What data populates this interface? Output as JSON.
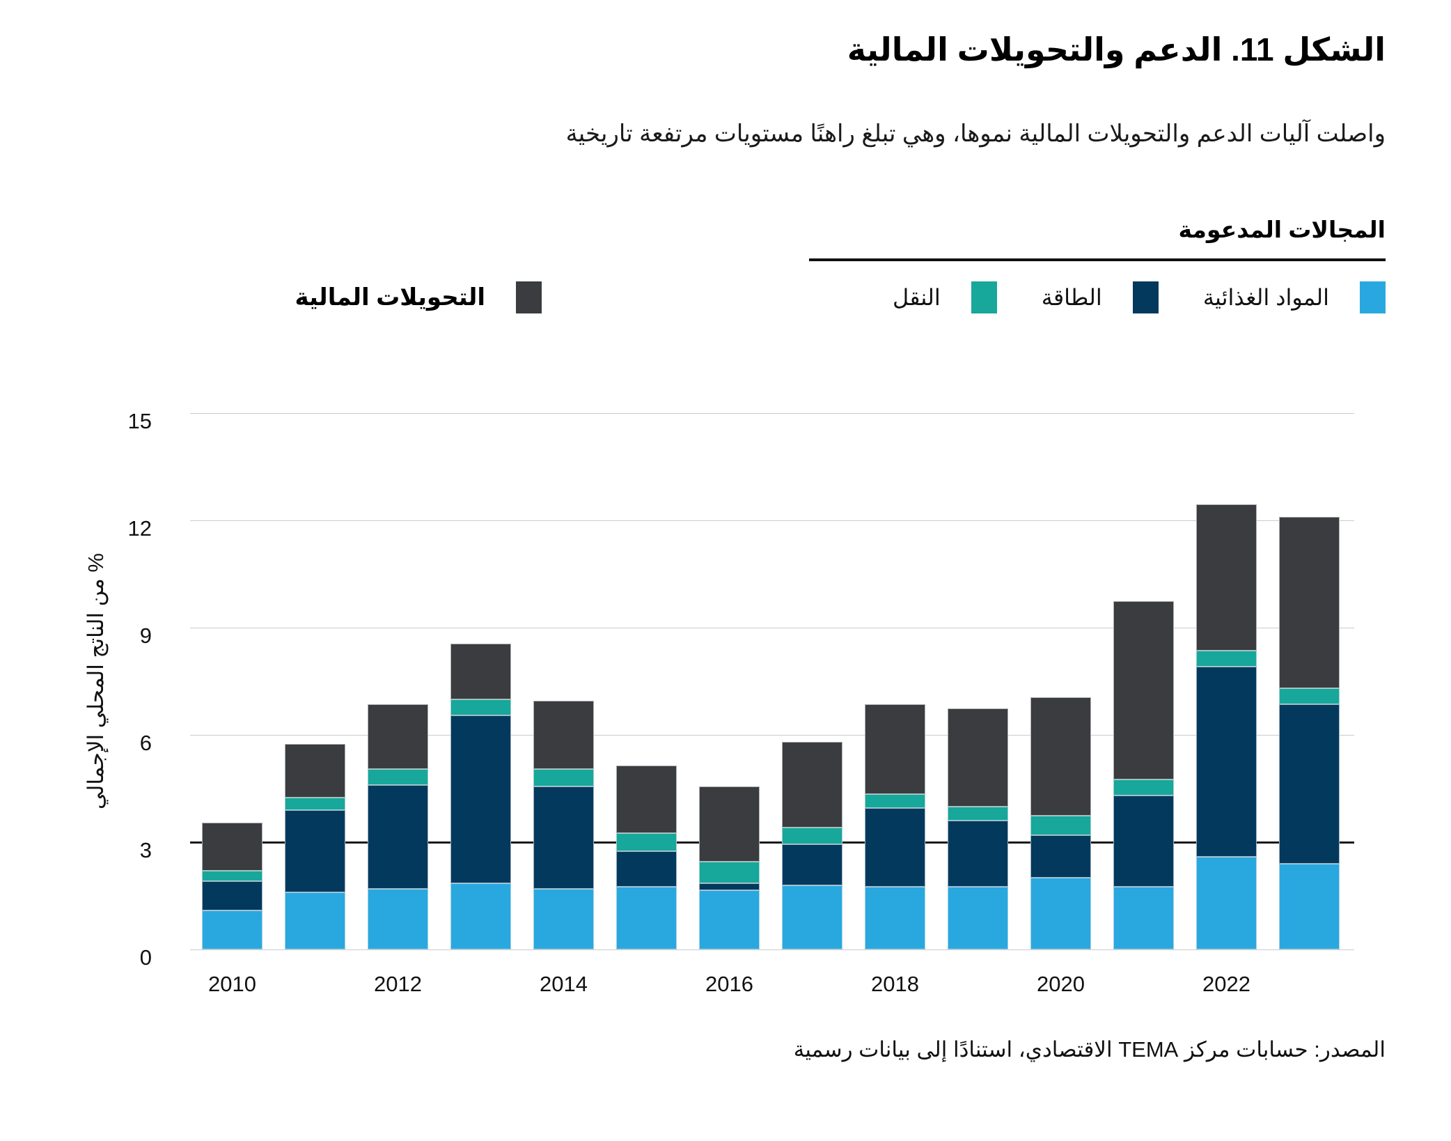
{
  "figure": {
    "title": "الشكل 11. الدعم والتحويلات المالية",
    "subtitle": "واصلت آليات الدعم والتحويلات المالية نموها، وهي تبلغ راهنًا مستويات مرتفعة تاريخية",
    "source": "المصدر: حسابات مركز TEMA الاقتصادي، استنادًا إلى بيانات رسمية"
  },
  "legend": {
    "group_header": "المجالات المدعومة",
    "items": [
      {
        "key": "food",
        "label": "المواد الغذائية",
        "color": "#29A8E0"
      },
      {
        "key": "energy",
        "label": "الطاقة",
        "color": "#04395E"
      },
      {
        "key": "transport",
        "label": "النقل",
        "color": "#17A79B"
      }
    ],
    "standalone": {
      "key": "transfers",
      "label": "التحويلات المالية",
      "color": "#3A3C3F"
    }
  },
  "colors": {
    "food": "#29A8E0",
    "energy": "#04395E",
    "transport": "#17A79B",
    "transfers": "#3A3C3F",
    "gridline": "#c9cbcd",
    "reference_line": "#1b1b1b"
  },
  "chart_data": {
    "type": "bar",
    "stacked": true,
    "title": "الشكل 11. الدعم والتحويلات المالية",
    "ylabel": "% من الناتج المحلي الإجمالي",
    "xlabel": "",
    "ylim": [
      0,
      15
    ],
    "yticks": [
      0,
      3,
      6,
      9,
      12,
      15
    ],
    "reference_line": 3,
    "grid": true,
    "legend_position": "top",
    "categories": [
      2010,
      2011,
      2012,
      2013,
      2014,
      2015,
      2016,
      2017,
      2018,
      2019,
      2020,
      2021,
      2022,
      2023
    ],
    "x_tick_labels": [
      "2010",
      "2012",
      "2014",
      "2016",
      "2018",
      "2020",
      "2022"
    ],
    "series": [
      {
        "name": "المواد الغذائية",
        "key": "food",
        "color": "#29A8E0",
        "values": [
          1.1,
          1.6,
          1.7,
          1.85,
          1.7,
          1.75,
          1.65,
          1.8,
          1.75,
          1.75,
          2.0,
          1.75,
          2.6,
          2.4
        ]
      },
      {
        "name": "الطاقة",
        "key": "energy",
        "color": "#04395E",
        "values": [
          0.8,
          2.3,
          2.9,
          4.7,
          2.85,
          1.0,
          0.2,
          1.15,
          2.2,
          1.85,
          1.2,
          2.55,
          5.3,
          4.45
        ]
      },
      {
        "name": "النقل",
        "key": "transport",
        "color": "#17A79B",
        "values": [
          0.3,
          0.35,
          0.45,
          0.45,
          0.5,
          0.5,
          0.6,
          0.45,
          0.4,
          0.4,
          0.55,
          0.45,
          0.45,
          0.45
        ]
      },
      {
        "name": "التحويلات المالية",
        "key": "transfers",
        "color": "#3A3C3F",
        "values": [
          1.35,
          1.5,
          1.8,
          1.55,
          1.9,
          1.9,
          2.1,
          2.4,
          2.5,
          2.75,
          3.3,
          5.0,
          4.1,
          4.8
        ]
      }
    ],
    "totals": [
      3.55,
      5.75,
      6.85,
      8.55,
      6.95,
      5.15,
      4.55,
      5.8,
      6.85,
      6.75,
      7.05,
      9.75,
      12.45,
      12.1
    ]
  }
}
